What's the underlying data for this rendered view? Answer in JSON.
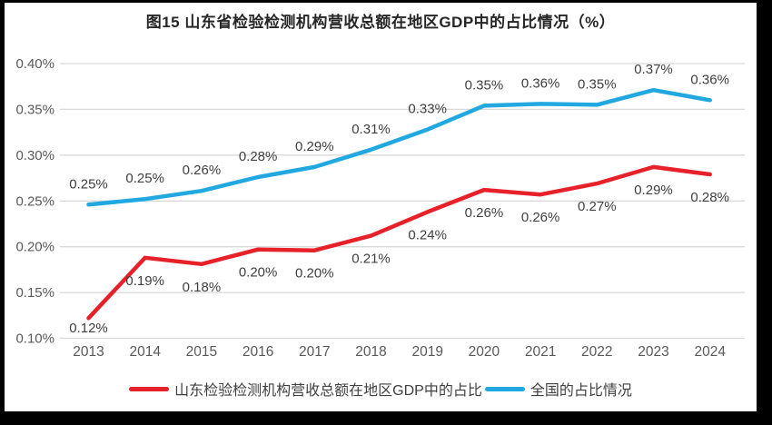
{
  "title": "图15  山东省检验检测机构营收总额在地区GDP中的占比情况（%）",
  "frame": {
    "background_color": "#ffffff",
    "border_color": "#000000"
  },
  "chart_data": {
    "type": "line",
    "title": "图15  山东省检验检测机构营收总额在地区GDP中的占比情况（%）",
    "categories": [
      "2013",
      "2014",
      "2015",
      "2016",
      "2017",
      "2018",
      "2019",
      "2020",
      "2021",
      "2022",
      "2023",
      "2024"
    ],
    "y_axis": {
      "unit": "%",
      "min": 0.1,
      "max": 0.4,
      "tick_labels": [
        "0.40%",
        "0.35%",
        "0.30%",
        "0.25%",
        "0.20%",
        "0.15%",
        "0.10%"
      ],
      "tick_values": [
        0.4,
        0.35,
        0.3,
        0.25,
        0.2,
        0.15,
        0.1
      ]
    },
    "grid": "horizontal",
    "grid_color": "#d9d9d9",
    "tick_label_color": "#595959",
    "data_label_color": "#3f3f3f",
    "legend_position": "bottom",
    "series": [
      {
        "name": "山东检验检测机构营收总额在地区GDP中的占比",
        "color": "#e62129",
        "label_position": "below",
        "values": [
          0.12,
          0.19,
          0.18,
          0.2,
          0.2,
          0.21,
          0.24,
          0.26,
          0.26,
          0.27,
          0.29,
          0.28
        ],
        "labels": [
          "0.12%",
          "0.19%",
          "0.18%",
          "0.20%",
          "0.20%",
          "0.21%",
          "0.24%",
          "0.26%",
          "0.26%",
          "0.27%",
          "0.29%",
          "0.28%"
        ],
        "values_precise": [
          0.122,
          0.188,
          0.181,
          0.197,
          0.196,
          0.212,
          0.238,
          0.262,
          0.257,
          0.269,
          0.287,
          0.279
        ]
      },
      {
        "name": "全国的占比情况",
        "color": "#21a8e0",
        "label_position": "above",
        "values": [
          0.25,
          0.25,
          0.26,
          0.28,
          0.29,
          0.31,
          0.33,
          0.35,
          0.36,
          0.35,
          0.37,
          0.36
        ],
        "labels": [
          "0.25%",
          "0.25%",
          "0.26%",
          "0.28%",
          "0.29%",
          "0.31%",
          "0.33%",
          "0.35%",
          "0.36%",
          "0.35%",
          "0.37%",
          "0.36%"
        ],
        "values_precise": [
          0.246,
          0.252,
          0.261,
          0.276,
          0.287,
          0.306,
          0.328,
          0.354,
          0.356,
          0.355,
          0.371,
          0.36
        ]
      }
    ]
  }
}
